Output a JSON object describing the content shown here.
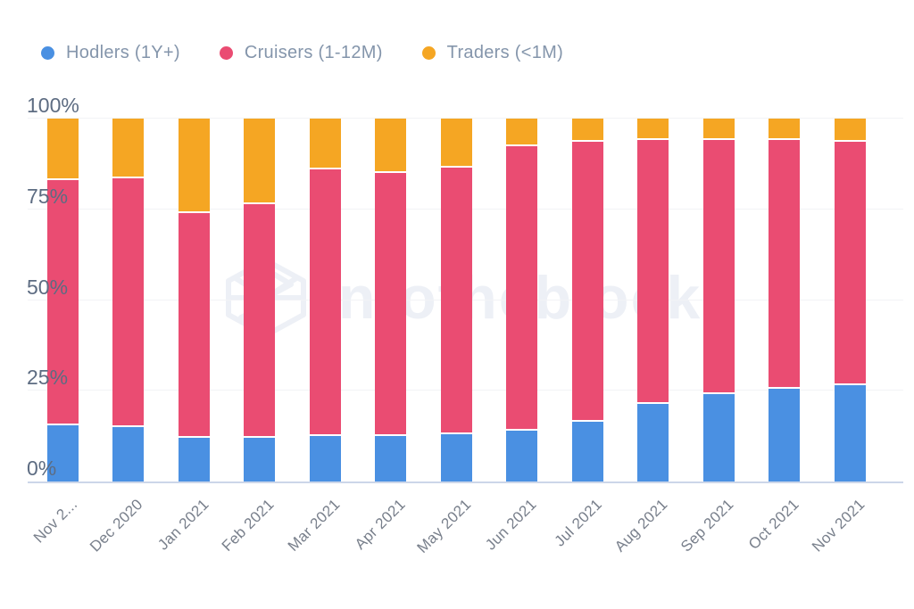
{
  "watermark": {
    "text": "intotheblock"
  },
  "legend": {
    "items": [
      {
        "label": "Hodlers (1Y+)",
        "color": "#4a90e2"
      },
      {
        "label": "Cruisers (1-12M)",
        "color": "#ea4c72"
      },
      {
        "label": "Traders (<1M)",
        "color": "#f5a623"
      }
    ]
  },
  "chart_data": {
    "type": "bar",
    "stacked": true,
    "stack_unit": "percent",
    "title": "",
    "xlabel": "",
    "ylabel": "",
    "ylim": [
      0,
      100
    ],
    "grid": true,
    "legend_position": "top-left",
    "categories": [
      "Nov 2...",
      "Dec 2020",
      "Jan 2021",
      "Feb 2021",
      "Mar 2021",
      "Apr 2021",
      "May 2021",
      "Jun 2021",
      "Jul 2021",
      "Aug 2021",
      "Sep 2021",
      "Oct 2021",
      "Nov 2021"
    ],
    "series": [
      {
        "name": "Hodlers (1Y+)",
        "color": "#4a90e2",
        "values": [
          15.5,
          15.0,
          12.0,
          12.0,
          12.5,
          12.5,
          13.0,
          14.0,
          16.5,
          21.5,
          24.0,
          25.5,
          26.5
        ]
      },
      {
        "name": "Cruisers (1-12M)",
        "color": "#ea4c72",
        "values": [
          67.5,
          68.5,
          62.0,
          64.5,
          73.5,
          72.5,
          73.5,
          78.5,
          77.0,
          72.5,
          70.0,
          68.5,
          67.0
        ]
      },
      {
        "name": "Traders (<1M)",
        "color": "#f5a623",
        "values": [
          17.0,
          16.5,
          26.0,
          23.5,
          14.0,
          15.0,
          13.5,
          7.5,
          6.5,
          6.0,
          6.0,
          6.0,
          6.5
        ]
      }
    ],
    "yticks": [
      {
        "value": 0,
        "label": "0%"
      },
      {
        "value": 25,
        "label": "25%"
      },
      {
        "value": 50,
        "label": "50%"
      },
      {
        "value": 75,
        "label": "75%"
      },
      {
        "value": 100,
        "label": "100%"
      }
    ]
  },
  "colors": {
    "hodlers": "#4a90e2",
    "cruisers": "#ea4c72",
    "traders": "#f5a623",
    "legend_text": "#8495ab",
    "y_axis_text": "#5d6c82",
    "x_axis_text": "#787f8b",
    "gridline": "#f2f3f6",
    "axis_line": "#ccd6e9",
    "watermark": "#edf0f6",
    "background": "#ffffff"
  }
}
